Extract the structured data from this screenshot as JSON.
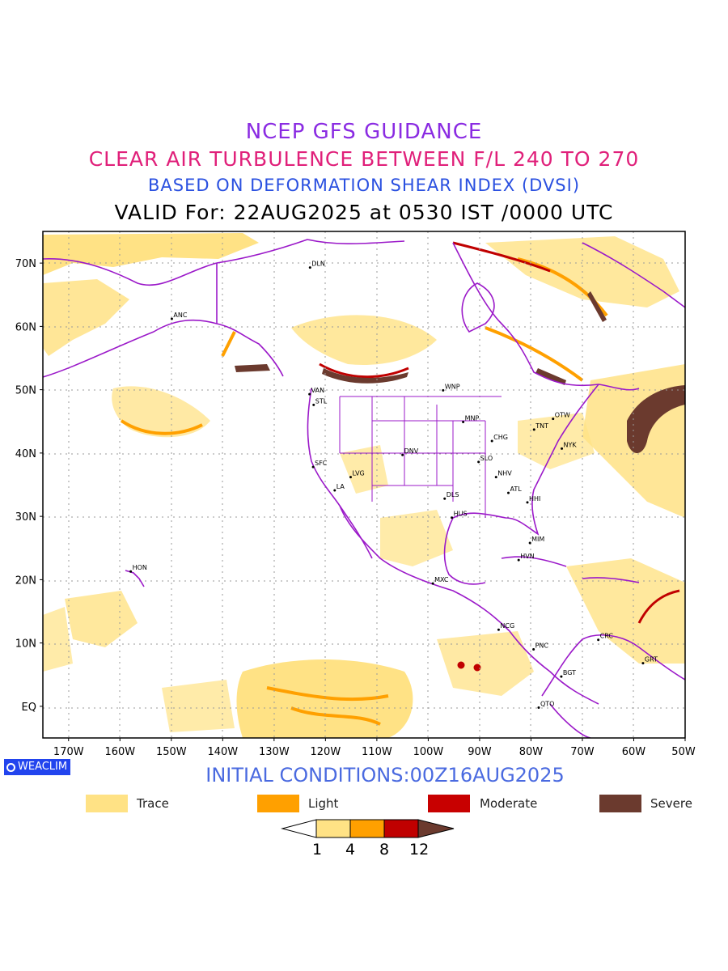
{
  "titles": {
    "line1": "NCEP GFS GUIDANCE",
    "line2": "CLEAR AIR TURBULENCE BETWEEN F/L 240 TO 270",
    "line3": "BASED ON DEFORMATION SHEAR INDEX (DVSI)",
    "line4": "VALID For: 22AUG2025 at 0530 IST /0000 UTC"
  },
  "map": {
    "projection": "lat-lon",
    "lon_range": [
      -175,
      -50
    ],
    "lat_range": [
      -5,
      75
    ],
    "grid": true,
    "lat_labels": [
      "70N",
      "60N",
      "50N",
      "40N",
      "30N",
      "20N",
      "10N",
      "EQ"
    ],
    "lon_labels": [
      "170W",
      "160W",
      "150W",
      "140W",
      "130W",
      "120W",
      "110W",
      "100W",
      "90W",
      "80W",
      "70W",
      "60W",
      "50W"
    ],
    "stations": [
      {
        "code": "ANC",
        "lat": 61.2,
        "lon": -149.9
      },
      {
        "code": "DLN",
        "lat": 69.3,
        "lon": -123.0
      },
      {
        "code": "VAN",
        "lat": 49.3,
        "lon": -123.1
      },
      {
        "code": "STL",
        "lat": 47.6,
        "lon": -122.3
      },
      {
        "code": "WNP",
        "lat": 49.9,
        "lon": -97.1
      },
      {
        "code": "MNP",
        "lat": 44.9,
        "lon": -93.2
      },
      {
        "code": "TNT",
        "lat": 43.7,
        "lon": -79.4
      },
      {
        "code": "OTW",
        "lat": 45.4,
        "lon": -75.7
      },
      {
        "code": "CHG",
        "lat": 41.9,
        "lon": -87.6
      },
      {
        "code": "NYK",
        "lat": 40.7,
        "lon": -74.0
      },
      {
        "code": "DNV",
        "lat": 39.7,
        "lon": -105.0
      },
      {
        "code": "SFC",
        "lat": 37.8,
        "lon": -122.4
      },
      {
        "code": "SLO",
        "lat": 38.6,
        "lon": -90.2
      },
      {
        "code": "LVG",
        "lat": 36.2,
        "lon": -115.1
      },
      {
        "code": "NHV",
        "lat": 36.2,
        "lon": -86.8
      },
      {
        "code": "LA",
        "lat": 34.1,
        "lon": -118.2
      },
      {
        "code": "ATL",
        "lat": 33.7,
        "lon": -84.4
      },
      {
        "code": "DLS",
        "lat": 32.8,
        "lon": -96.8
      },
      {
        "code": "HHI",
        "lat": 32.2,
        "lon": -80.7
      },
      {
        "code": "HUS",
        "lat": 29.8,
        "lon": -95.4
      },
      {
        "code": "MIM",
        "lat": 25.8,
        "lon": -80.2
      },
      {
        "code": "HVN",
        "lat": 23.1,
        "lon": -82.4
      },
      {
        "code": "HON",
        "lat": 21.3,
        "lon": -157.9
      },
      {
        "code": "MXC",
        "lat": 19.4,
        "lon": -99.1
      },
      {
        "code": "NCG",
        "lat": 12.1,
        "lon": -86.3
      },
      {
        "code": "CRC",
        "lat": 10.5,
        "lon": -66.9
      },
      {
        "code": "PNC",
        "lat": 9.0,
        "lon": -79.5
      },
      {
        "code": "GRT",
        "lat": 6.8,
        "lon": -58.2
      },
      {
        "code": "BGT",
        "lat": 4.7,
        "lon": -74.1
      },
      {
        "code": "QTO",
        "lat": -0.2,
        "lon": -78.5
      }
    ]
  },
  "brand": "WEACLIM",
  "initial_conditions": "INITIAL CONDITIONS:00Z16AUG2025",
  "legend": [
    {
      "label": "Trace",
      "color": "#ffe285"
    },
    {
      "label": "Light",
      "color": "#ffa000"
    },
    {
      "label": "Moderate",
      "color": "#c80000"
    },
    {
      "label": "Severe",
      "color": "#6b3a2e"
    }
  ],
  "colorbar": {
    "ticks": [
      "1",
      "4",
      "8",
      "12"
    ],
    "colors": [
      "#ffffff",
      "#ffe285",
      "#ffa000",
      "#c00000",
      "#6b3a2e"
    ]
  }
}
